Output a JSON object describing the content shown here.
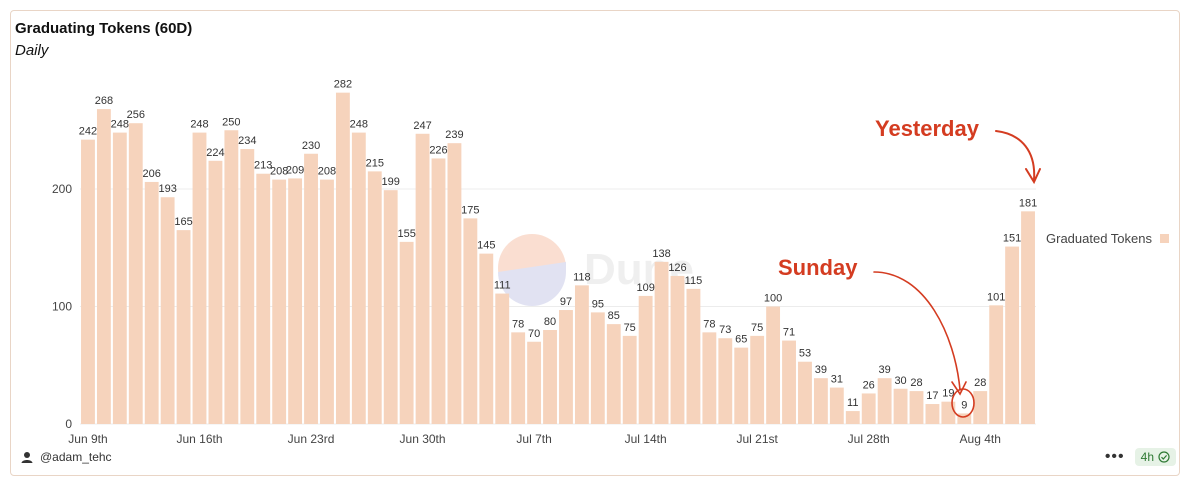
{
  "header": {
    "title": "Graduating Tokens (60D)",
    "subtitle": "Daily"
  },
  "footer": {
    "author": "@adam_tehc",
    "refresh_badge": "4h"
  },
  "watermark": {
    "text": "Dune"
  },
  "annotations": {
    "yesterday": "Yesterday",
    "sunday": "Sunday"
  },
  "colors": {
    "bar": "#f6d3bc",
    "annotation": "#d43c21",
    "grid": "#ececec",
    "badge_bg": "#e6f2e6",
    "badge_fg": "#2f7a34"
  },
  "chart_data": {
    "type": "bar",
    "title": "Graduating Tokens (60D)",
    "subtitle": "Daily",
    "xlabel": "",
    "ylabel": "",
    "ylim": [
      0,
      300
    ],
    "yticks": [
      0,
      100,
      200
    ],
    "xticks": [
      "Jun 9th",
      "Jun 16th",
      "Jun 23rd",
      "Jun 30th",
      "Jul 7th",
      "Jul 14th",
      "Jul 21st",
      "Jul 28th",
      "Aug 4th"
    ],
    "xtick_indices": [
      0,
      7,
      14,
      21,
      28,
      35,
      42,
      49,
      56
    ],
    "grid": true,
    "legend": "right",
    "series": [
      {
        "name": "Graduated Tokens",
        "values": [
          242,
          268,
          248,
          256,
          206,
          193,
          165,
          248,
          224,
          250,
          234,
          213,
          208,
          209,
          230,
          208,
          282,
          248,
          215,
          199,
          155,
          247,
          226,
          239,
          175,
          145,
          111,
          78,
          70,
          80,
          97,
          118,
          95,
          85,
          75,
          109,
          138,
          126,
          115,
          78,
          73,
          65,
          75,
          100,
          71,
          53,
          39,
          31,
          11,
          26,
          39,
          30,
          28,
          17,
          19,
          9,
          28,
          101,
          151,
          181
        ]
      }
    ]
  }
}
